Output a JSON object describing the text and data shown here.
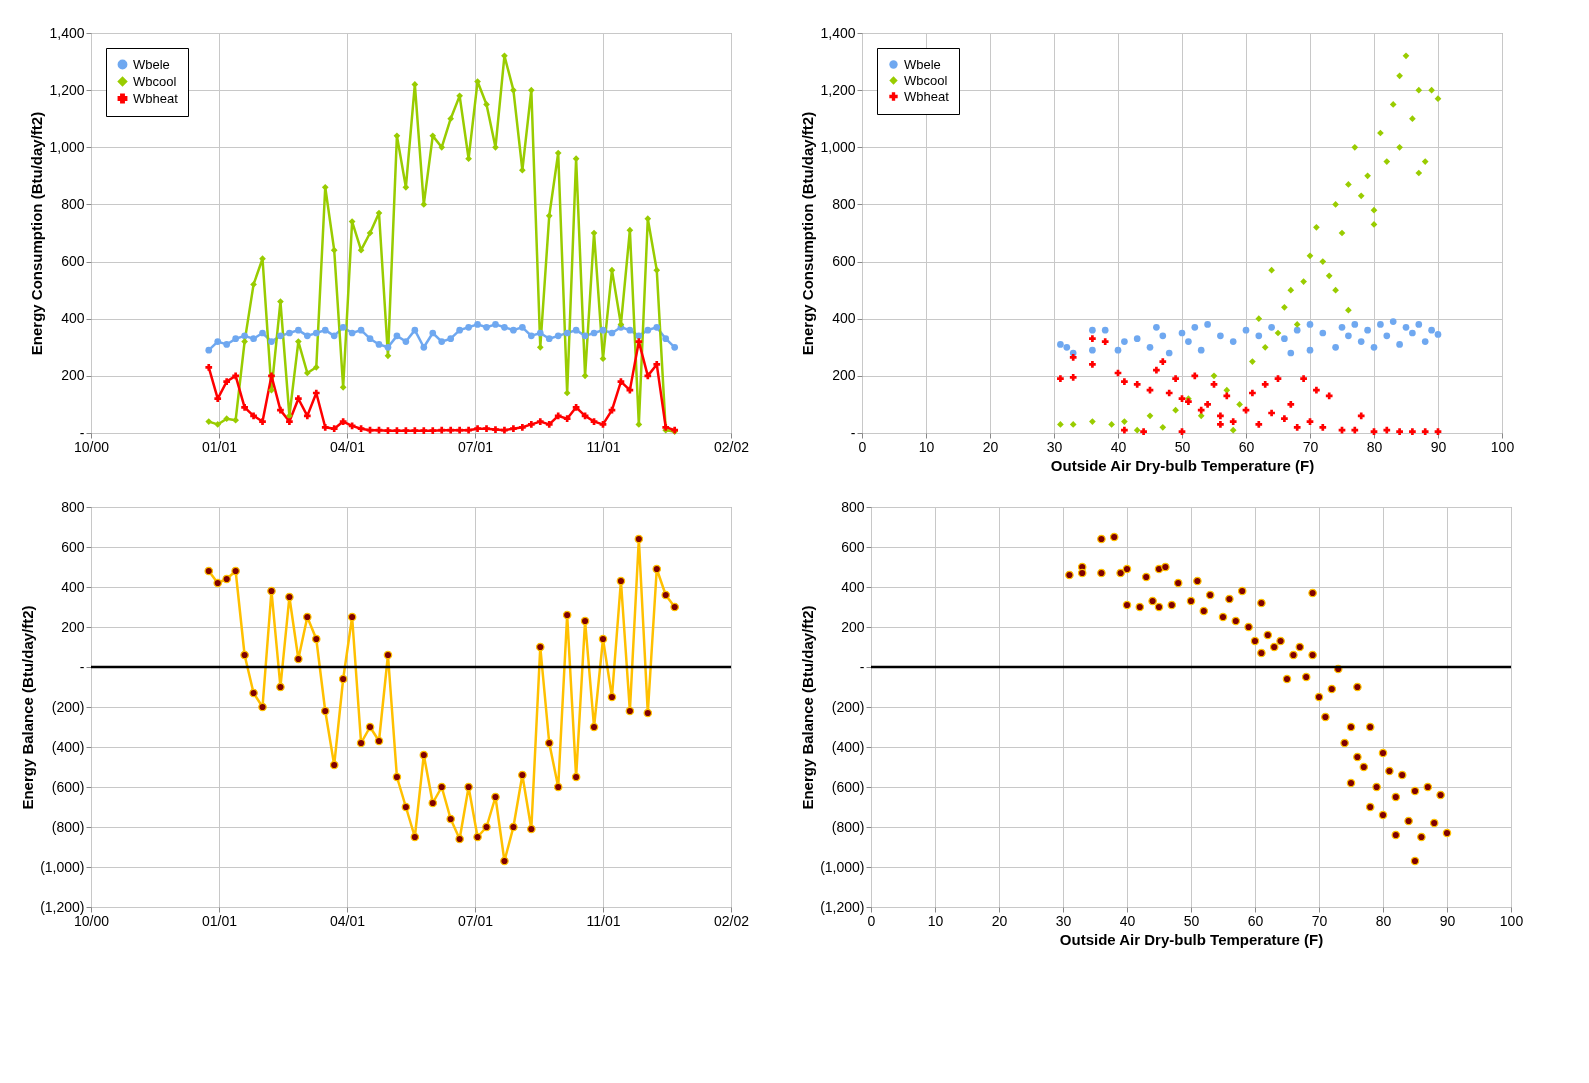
{
  "chart_data": [
    {
      "type": "line",
      "ylabel": "Energy Consumption  (Btu/day/ft2)",
      "grid": true,
      "legend": "top left",
      "xlim": [
        "2000-10-01",
        "2002-02-13"
      ],
      "xticks": [
        {
          "value": "2000-10-01",
          "label": "10/00"
        },
        {
          "value": "2001-01-09",
          "label": "01/01"
        },
        {
          "value": "2001-04-19",
          "label": "04/01"
        },
        {
          "value": "2001-07-28",
          "label": "07/01"
        },
        {
          "value": "2001-11-05",
          "label": "11/01"
        },
        {
          "value": "2002-02-13",
          "label": "02/02"
        }
      ],
      "ylim": [
        0,
        1400
      ],
      "yticks": [
        {
          "value": 0,
          "label": "-"
        },
        200,
        400,
        600,
        800,
        {
          "value": 1000,
          "label": "1,000"
        },
        {
          "value": 1200,
          "label": "1,200"
        },
        {
          "value": 1400,
          "label": "1,400"
        }
      ],
      "x": [
        "2001-01-01",
        "2001-01-08",
        "2001-01-15",
        "2001-01-22",
        "2001-01-29",
        "2001-02-05",
        "2001-02-12",
        "2001-02-19",
        "2001-02-26",
        "2001-03-05",
        "2001-03-12",
        "2001-03-19",
        "2001-03-26",
        "2001-04-02",
        "2001-04-09",
        "2001-04-16",
        "2001-04-23",
        "2001-04-30",
        "2001-05-07",
        "2001-05-14",
        "2001-05-21",
        "2001-05-28",
        "2001-06-04",
        "2001-06-11",
        "2001-06-18",
        "2001-06-25",
        "2001-07-02",
        "2001-07-09",
        "2001-07-16",
        "2001-07-23",
        "2001-07-30",
        "2001-08-06",
        "2001-08-13",
        "2001-08-20",
        "2001-08-27",
        "2001-09-03",
        "2001-09-10",
        "2001-09-17",
        "2001-09-24",
        "2001-10-01",
        "2001-10-08",
        "2001-10-15",
        "2001-10-22",
        "2001-10-29",
        "2001-11-05",
        "2001-11-12",
        "2001-11-19",
        "2001-11-26",
        "2001-12-03",
        "2001-12-10",
        "2001-12-17",
        "2001-12-24",
        "2001-12-31"
      ],
      "series": [
        {
          "name": "Wbele",
          "color": "#6fa8f0",
          "marker": "circle",
          "values": [
            290,
            320,
            310,
            330,
            340,
            330,
            350,
            320,
            340,
            350,
            360,
            340,
            350,
            360,
            340,
            370,
            350,
            360,
            330,
            310,
            300,
            340,
            320,
            360,
            300,
            350,
            320,
            330,
            360,
            370,
            380,
            370,
            380,
            370,
            360,
            370,
            340,
            350,
            330,
            340,
            350,
            360,
            340,
            350,
            360,
            350,
            370,
            360,
            340,
            360,
            370,
            330,
            300
          ]
        },
        {
          "name": "Wbcool",
          "color": "#99cc00",
          "marker": "diamond",
          "values": [
            40,
            30,
            50,
            45,
            320,
            520,
            610,
            150,
            460,
            60,
            320,
            210,
            230,
            860,
            640,
            160,
            740,
            640,
            700,
            770,
            270,
            1040,
            860,
            1220,
            800,
            1040,
            1000,
            1100,
            1180,
            960,
            1230,
            1150,
            1000,
            1320,
            1200,
            920,
            1200,
            300,
            760,
            980,
            140,
            960,
            200,
            700,
            260,
            570,
            380,
            710,
            30,
            750,
            570,
            10,
            5
          ]
        },
        {
          "name": "Wbheat",
          "color": "#ff0000",
          "marker": "cross",
          "values": [
            230,
            120,
            180,
            200,
            90,
            60,
            40,
            200,
            80,
            40,
            120,
            60,
            140,
            20,
            15,
            40,
            25,
            15,
            10,
            10,
            8,
            8,
            8,
            8,
            8,
            8,
            10,
            10,
            10,
            10,
            15,
            15,
            12,
            10,
            15,
            20,
            30,
            40,
            30,
            60,
            50,
            90,
            60,
            40,
            30,
            80,
            180,
            150,
            320,
            200,
            240,
            20,
            10
          ]
        }
      ]
    },
    {
      "type": "scatter",
      "ylabel": "Energy Consumption  (Btu/day/ft2)",
      "xlabel": "Outside Air Dry-bulb Temperature (F)",
      "grid": true,
      "legend": "top left",
      "xlim": [
        0,
        100
      ],
      "xticks": [
        0,
        10,
        20,
        30,
        40,
        50,
        60,
        70,
        80,
        90,
        100
      ],
      "ylim": [
        0,
        1400
      ],
      "yticks": [
        {
          "value": 0,
          "label": "-"
        },
        200,
        400,
        600,
        800,
        {
          "value": 1000,
          "label": "1,000"
        },
        {
          "value": 1200,
          "label": "1,200"
        },
        {
          "value": 1400,
          "label": "1,400"
        }
      ],
      "series": [
        {
          "name": "Wbele",
          "color": "#6fa8f0",
          "marker": "circle",
          "x": [
            31,
            32,
            33,
            36,
            36,
            38,
            40,
            41,
            43,
            45,
            46,
            47,
            48,
            50,
            51,
            52,
            53,
            54,
            56,
            58,
            60,
            62,
            64,
            66,
            67,
            68,
            70,
            70,
            72,
            74,
            75,
            76,
            77,
            78,
            79,
            80,
            81,
            82,
            83,
            84,
            85,
            86,
            87,
            88,
            89,
            90
          ],
          "values": [
            310,
            300,
            280,
            360,
            290,
            360,
            290,
            320,
            330,
            300,
            370,
            340,
            280,
            350,
            320,
            370,
            290,
            380,
            340,
            320,
            360,
            340,
            370,
            330,
            280,
            360,
            380,
            290,
            350,
            300,
            370,
            340,
            380,
            320,
            360,
            300,
            380,
            340,
            390,
            310,
            370,
            350,
            380,
            320,
            360,
            345
          ]
        },
        {
          "name": "Wbcool",
          "color": "#99cc00",
          "marker": "diamond",
          "x": [
            31,
            33,
            36,
            39,
            41,
            43,
            45,
            47,
            49,
            51,
            53,
            55,
            57,
            58,
            59,
            61,
            62,
            63,
            64,
            65,
            66,
            67,
            68,
            69,
            70,
            71,
            72,
            73,
            74,
            74,
            75,
            76,
            76,
            77,
            78,
            79,
            80,
            80,
            81,
            82,
            83,
            84,
            84,
            85,
            86,
            87,
            87,
            88,
            89,
            90
          ],
          "values": [
            30,
            30,
            40,
            30,
            40,
            10,
            60,
            20,
            80,
            120,
            60,
            200,
            150,
            10,
            100,
            250,
            400,
            300,
            570,
            350,
            440,
            500,
            380,
            530,
            620,
            720,
            600,
            550,
            800,
            500,
            700,
            870,
            430,
            1000,
            830,
            900,
            780,
            730,
            1050,
            950,
            1150,
            1000,
            1250,
            1320,
            1100,
            1200,
            910,
            950,
            1200,
            1170
          ]
        },
        {
          "name": "Wbheat",
          "color": "#ff0000",
          "marker": "cross",
          "x": [
            31,
            33,
            33,
            36,
            36,
            38,
            40,
            41,
            41,
            43,
            44,
            45,
            46,
            47,
            48,
            49,
            50,
            50,
            51,
            52,
            53,
            54,
            55,
            56,
            56,
            57,
            58,
            60,
            61,
            62,
            63,
            64,
            65,
            66,
            67,
            68,
            69,
            70,
            71,
            72,
            73,
            75,
            77,
            78,
            80,
            82,
            84,
            86,
            88,
            90
          ],
          "values": [
            190,
            195,
            265,
            240,
            330,
            320,
            210,
            180,
            10,
            170,
            5,
            150,
            220,
            250,
            140,
            190,
            120,
            5,
            110,
            200,
            80,
            100,
            170,
            60,
            30,
            130,
            40,
            80,
            140,
            30,
            170,
            70,
            190,
            50,
            100,
            20,
            190,
            40,
            150,
            20,
            130,
            10,
            10,
            60,
            5,
            10,
            5,
            5,
            5,
            5
          ]
        }
      ]
    },
    {
      "type": "line",
      "ylabel": "Energy Balance (Btu/day/ft2)",
      "grid": true,
      "marker": "circle",
      "xlim": [
        "2000-10-01",
        "2002-02-13"
      ],
      "xticks": [
        {
          "value": "2000-10-01",
          "label": "10/00"
        },
        {
          "value": "2001-01-09",
          "label": "01/01"
        },
        {
          "value": "2001-04-19",
          "label": "04/01"
        },
        {
          "value": "2001-07-28",
          "label": "07/01"
        },
        {
          "value": "2001-11-05",
          "label": "11/01"
        },
        {
          "value": "2002-02-13",
          "label": "02/02"
        }
      ],
      "ylim": [
        -1200,
        800
      ],
      "yticks": [
        {
          "value": -1200,
          "label": "(1,200)"
        },
        {
          "value": -1000,
          "label": "(1,000)"
        },
        {
          "value": -800,
          "label": "(800)"
        },
        {
          "value": -600,
          "label": "(600)"
        },
        {
          "value": -400,
          "label": "(400)"
        },
        {
          "value": -200,
          "label": "(200)"
        },
        {
          "value": 0,
          "label": "-"
        },
        200,
        400,
        600,
        800
      ],
      "ref_lines": [
        {
          "axis": "y",
          "value": 0,
          "color": "#000000"
        }
      ],
      "x": [
        "2001-01-01",
        "2001-01-08",
        "2001-01-15",
        "2001-01-22",
        "2001-01-29",
        "2001-02-05",
        "2001-02-12",
        "2001-02-19",
        "2001-02-26",
        "2001-03-05",
        "2001-03-12",
        "2001-03-19",
        "2001-03-26",
        "2001-04-02",
        "2001-04-09",
        "2001-04-16",
        "2001-04-23",
        "2001-04-30",
        "2001-05-07",
        "2001-05-14",
        "2001-05-21",
        "2001-05-28",
        "2001-06-04",
        "2001-06-11",
        "2001-06-18",
        "2001-06-25",
        "2001-07-02",
        "2001-07-09",
        "2001-07-16",
        "2001-07-23",
        "2001-07-30",
        "2001-08-06",
        "2001-08-13",
        "2001-08-20",
        "2001-08-27",
        "2001-09-03",
        "2001-09-10",
        "2001-09-17",
        "2001-09-24",
        "2001-10-01",
        "2001-10-08",
        "2001-10-15",
        "2001-10-22",
        "2001-10-29",
        "2001-11-05",
        "2001-11-12",
        "2001-11-19",
        "2001-11-26",
        "2001-12-03",
        "2001-12-10",
        "2001-12-17",
        "2001-12-24",
        "2001-12-31"
      ],
      "series": [
        {
          "color": "#ffc000",
          "values": [
            480,
            420,
            440,
            480,
            60,
            -130,
            -200,
            380,
            -100,
            350,
            40,
            250,
            140,
            -220,
            -490,
            -60,
            250,
            -380,
            -300,
            -370,
            60,
            -550,
            -700,
            -850,
            -440,
            -680,
            -600,
            -760,
            -860,
            -600,
            -850,
            -800,
            -650,
            -970,
            -800,
            -540,
            -810,
            100,
            -380,
            -600,
            260,
            -550,
            230,
            -300,
            140,
            -150,
            430,
            -220,
            640,
            -230,
            490,
            360,
            300
          ]
        }
      ]
    },
    {
      "type": "scatter",
      "ylabel": "Energy Balance (Btu/day/ft2)",
      "xlabel": "Outside Air Dry-bulb Temperature (F)",
      "grid": true,
      "marker": "circle",
      "xlim": [
        0,
        100
      ],
      "xticks": [
        0,
        10,
        20,
        30,
        40,
        50,
        60,
        70,
        80,
        90,
        100
      ],
      "ylim": [
        -1200,
        800
      ],
      "yticks": [
        {
          "value": -1200,
          "label": "(1,200)"
        },
        {
          "value": -1000,
          "label": "(1,000)"
        },
        {
          "value": -800,
          "label": "(800)"
        },
        {
          "value": -600,
          "label": "(600)"
        },
        {
          "value": -400,
          "label": "(400)"
        },
        {
          "value": -200,
          "label": "(200)"
        },
        {
          "value": 0,
          "label": "-"
        },
        200,
        400,
        600,
        800
      ],
      "ref_lines": [
        {
          "axis": "y",
          "value": 0,
          "color": "#000000"
        }
      ],
      "series": [
        {
          "color": "#ffc000",
          "x": [
            31,
            33,
            33,
            36,
            36,
            38,
            39,
            40,
            40,
            42,
            43,
            44,
            45,
            45,
            46,
            47,
            48,
            50,
            51,
            52,
            53,
            55,
            56,
            57,
            58,
            59,
            60,
            61,
            61,
            62,
            63,
            64,
            65,
            66,
            67,
            68,
            69,
            69,
            70,
            71,
            72,
            73,
            74,
            75,
            75,
            76,
            76,
            77,
            78,
            78,
            79,
            80,
            80,
            81,
            82,
            82,
            83,
            84,
            85,
            85,
            86,
            87,
            88,
            89,
            90
          ],
          "values": [
            460,
            500,
            470,
            640,
            470,
            650,
            470,
            490,
            310,
            300,
            450,
            330,
            490,
            300,
            500,
            310,
            420,
            330,
            430,
            280,
            360,
            250,
            340,
            230,
            380,
            200,
            130,
            320,
            70,
            160,
            100,
            130,
            -60,
            60,
            100,
            -50,
            60,
            370,
            -150,
            -250,
            -110,
            -10,
            -380,
            -300,
            -580,
            -100,
            -450,
            -500,
            -300,
            -700,
            -600,
            -430,
            -740,
            -520,
            -840,
            -650,
            -540,
            -770,
            -970,
            -620,
            -850,
            -600,
            -780,
            -640,
            -830
          ]
        }
      ]
    }
  ]
}
